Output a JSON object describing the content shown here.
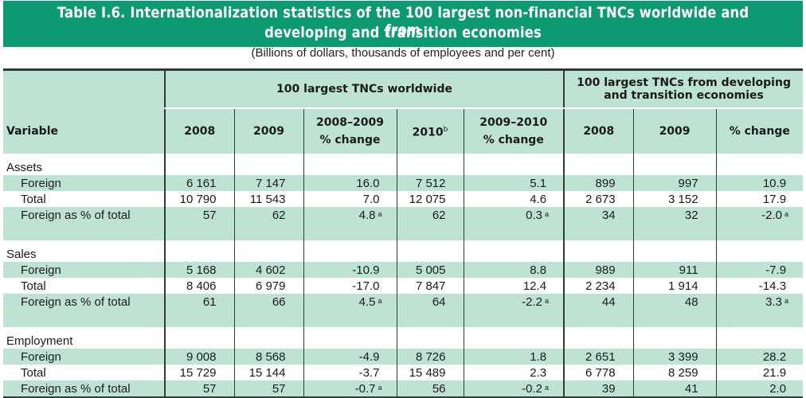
{
  "title": {
    "line1": "Table I.6. Internationalization statistics of the 100 largest non-financial TNCs worldwide and from",
    "line2": "developing and transition economies",
    "subtitle": "(Billions of dollars, thousands of employees and per cent)"
  },
  "header": {
    "group_world": "100 largest TNCs worldwide",
    "group_dev_line1": "100 largest TNCs from developing",
    "group_dev_line2": "and transition economies",
    "variable": "Variable",
    "c2008": "2008",
    "c2009": "2009",
    "c0809_l1": "2008–2009",
    "c0809_l2": "% change",
    "c2010": "2010",
    "c2010_sup": "b",
    "c0910_l1": "2009–2010",
    "c0910_l2": "% change",
    "d2008": "2008",
    "d2009": "2009",
    "dchange": "% change"
  },
  "sections": [
    {
      "name": "Assets",
      "rows": [
        {
          "label": "Foreign",
          "v2008": "6 161",
          "v2009": "7 147",
          "ch0809": "16.0",
          "fn0809": "",
          "v2010": "7 512",
          "ch0910": "5.1",
          "fn0910": "",
          "d2008": "899",
          "d2009": "997",
          "dch": "10.9",
          "fnd": ""
        },
        {
          "label": "Total",
          "v2008": "10 790",
          "v2009": "11 543",
          "ch0809": "7.0",
          "fn0809": "",
          "v2010": "12 075",
          "ch0910": "4.6",
          "fn0910": "",
          "d2008": "2 673",
          "d2009": "3 152",
          "dch": "17.9",
          "fnd": ""
        },
        {
          "label": "Foreign as % of total",
          "v2008": "57",
          "v2009": "62",
          "ch0809": "4.8",
          "fn0809": "a",
          "v2010": "62",
          "ch0910": "0.3",
          "fn0910": "a",
          "d2008": "34",
          "d2009": "32",
          "dch": "-2.0",
          "fnd": "a"
        }
      ]
    },
    {
      "name": "Sales",
      "rows": [
        {
          "label": "Foreign",
          "v2008": "5 168",
          "v2009": "4 602",
          "ch0809": "-10.9",
          "fn0809": "",
          "v2010": "5 005",
          "ch0910": "8.8",
          "fn0910": "",
          "d2008": "989",
          "d2009": "911",
          "dch": "-7.9",
          "fnd": ""
        },
        {
          "label": "Total",
          "v2008": "8 406",
          "v2009": "6 979",
          "ch0809": "-17.0",
          "fn0809": "",
          "v2010": "7 847",
          "ch0910": "12.4",
          "fn0910": "",
          "d2008": "2 234",
          "d2009": "1 914",
          "dch": "-14.3",
          "fnd": ""
        },
        {
          "label": "Foreign as % of total",
          "v2008": "61",
          "v2009": "66",
          "ch0809": "4.5",
          "fn0809": "a",
          "v2010": "64",
          "ch0910": "-2.2",
          "fn0910": "a",
          "d2008": "44",
          "d2009": "48",
          "dch": "3.3",
          "fnd": "a"
        }
      ]
    },
    {
      "name": "Employment",
      "rows": [
        {
          "label": "Foreign",
          "v2008": "9 008",
          "v2009": "8 568",
          "ch0809": "-4.9",
          "fn0809": "",
          "v2010": "8 726",
          "ch0910": "1.8",
          "fn0910": "",
          "d2008": "2 651",
          "d2009": "3 399",
          "dch": "28.2",
          "fnd": ""
        },
        {
          "label": "Total",
          "v2008": "15 729",
          "v2009": "15 144",
          "ch0809": "-3.7",
          "fn0809": "",
          "v2010": "15 489",
          "ch0910": "2.3",
          "fn0910": "",
          "d2008": "6 778",
          "d2009": "8 259",
          "dch": "21.9",
          "fnd": ""
        },
        {
          "label": "Foreign as % of total",
          "v2008": "57",
          "v2009": "57",
          "ch0809": "-0.7",
          "fn0809": "a",
          "v2010": "56",
          "ch0910": "-0.2",
          "fn0910": "a",
          "d2008": "39",
          "d2009": "41",
          "dch": "2.0",
          "fnd": ""
        }
      ]
    }
  ],
  "colors": {
    "title_band": "#0d9a72",
    "header_fill": "#bfe3d3",
    "rule": "#2e3c36"
  }
}
